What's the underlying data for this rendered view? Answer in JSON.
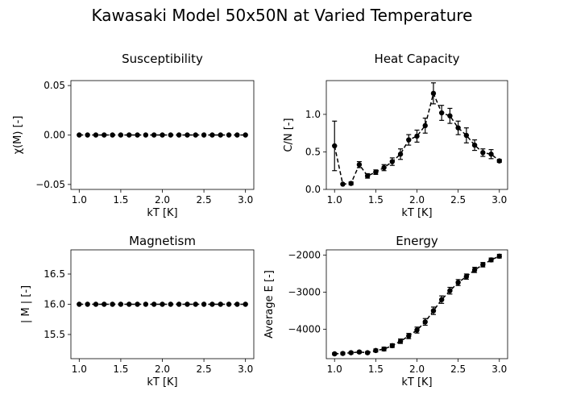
{
  "figure": {
    "title": "Kawasaki Model 50x50N at Varied Temperature"
  },
  "chart_data": [
    {
      "id": "susceptibility",
      "type": "line",
      "title": "Susceptibility",
      "xlabel": "kT [K]",
      "ylabel": "χ(M) [-]",
      "xlim": [
        0.9,
        3.1
      ],
      "ylim": [
        -0.055,
        0.055
      ],
      "xticks": [
        1.0,
        1.5,
        2.0,
        2.5,
        3.0
      ],
      "xtick_labels": [
        "1.0",
        "1.5",
        "2.0",
        "2.5",
        "3.0"
      ],
      "yticks": [
        -0.05,
        0.0,
        0.05
      ],
      "ytick_labels": [
        "−0.05",
        "0.00",
        "0.05"
      ],
      "grid": false,
      "series": [
        {
          "color": "#000000",
          "linestyle": "dashed",
          "marker": "circle",
          "x": [
            1.0,
            1.1,
            1.2,
            1.3,
            1.4,
            1.5,
            1.6,
            1.7,
            1.8,
            1.9,
            2.0,
            2.1,
            2.2,
            2.3,
            2.4,
            2.5,
            2.6,
            2.7,
            2.8,
            2.9,
            3.0
          ],
          "y": [
            0,
            0,
            0,
            0,
            0,
            0,
            0,
            0,
            0,
            0,
            0,
            0,
            0,
            0,
            0,
            0,
            0,
            0,
            0,
            0,
            0
          ],
          "yerr": [
            0,
            0,
            0,
            0,
            0,
            0,
            0,
            0,
            0,
            0,
            0,
            0,
            0,
            0,
            0,
            0,
            0,
            0,
            0,
            0,
            0
          ]
        }
      ]
    },
    {
      "id": "heat-capacity",
      "type": "line",
      "title": "Heat Capacity",
      "xlabel": "kT [K]",
      "ylabel": "C/N [-]",
      "xlim": [
        0.9,
        3.1
      ],
      "ylim": [
        0.0,
        1.45
      ],
      "xticks": [
        1.0,
        1.5,
        2.0,
        2.5,
        3.0
      ],
      "xtick_labels": [
        "1.0",
        "1.5",
        "2.0",
        "2.5",
        "3.0"
      ],
      "yticks": [
        0.0,
        0.5,
        1.0
      ],
      "ytick_labels": [
        "0.0",
        "0.5",
        "1.0"
      ],
      "grid": false,
      "series": [
        {
          "color": "#000000",
          "linestyle": "dashed",
          "marker": "circle",
          "x": [
            1.0,
            1.1,
            1.2,
            1.3,
            1.4,
            1.5,
            1.6,
            1.7,
            1.8,
            1.9,
            2.0,
            2.1,
            2.2,
            2.3,
            2.4,
            2.5,
            2.6,
            2.7,
            2.8,
            2.9,
            3.0
          ],
          "y": [
            0.58,
            0.07,
            0.08,
            0.33,
            0.18,
            0.23,
            0.29,
            0.37,
            0.47,
            0.66,
            0.71,
            0.85,
            1.28,
            1.02,
            0.98,
            0.82,
            0.72,
            0.59,
            0.49,
            0.47,
            0.38
          ],
          "yerr": [
            0.33,
            0.0,
            0.02,
            0.04,
            0.03,
            0.03,
            0.04,
            0.05,
            0.07,
            0.07,
            0.08,
            0.1,
            0.14,
            0.1,
            0.1,
            0.09,
            0.1,
            0.07,
            0.05,
            0.06,
            0.02
          ]
        }
      ]
    },
    {
      "id": "magnetism",
      "type": "line",
      "title": "Magnetism",
      "xlabel": "kT [K]",
      "ylabel": "| M |  [-]",
      "xlim": [
        0.9,
        3.1
      ],
      "ylim": [
        15.1,
        16.9
      ],
      "xticks": [
        1.0,
        1.5,
        2.0,
        2.5,
        3.0
      ],
      "xtick_labels": [
        "1.0",
        "1.5",
        "2.0",
        "2.5",
        "3.0"
      ],
      "yticks": [
        15.5,
        16.0,
        16.5
      ],
      "ytick_labels": [
        "15.5",
        "16.0",
        "16.5"
      ],
      "grid": false,
      "series": [
        {
          "color": "#000000",
          "linestyle": "dashed",
          "marker": "circle",
          "x": [
            1.0,
            1.1,
            1.2,
            1.3,
            1.4,
            1.5,
            1.6,
            1.7,
            1.8,
            1.9,
            2.0,
            2.1,
            2.2,
            2.3,
            2.4,
            2.5,
            2.6,
            2.7,
            2.8,
            2.9,
            3.0
          ],
          "y": [
            16,
            16,
            16,
            16,
            16,
            16,
            16,
            16,
            16,
            16,
            16,
            16,
            16,
            16,
            16,
            16,
            16,
            16,
            16,
            16,
            16
          ],
          "yerr": [
            0,
            0,
            0,
            0,
            0,
            0,
            0,
            0,
            0,
            0,
            0,
            0,
            0,
            0,
            0,
            0,
            0,
            0,
            0,
            0,
            0
          ]
        }
      ]
    },
    {
      "id": "energy",
      "type": "line",
      "title": "Energy",
      "xlabel": "kT [K]",
      "ylabel": "Average E [-]",
      "xlim": [
        0.9,
        3.1
      ],
      "ylim": [
        -4790,
        -1860
      ],
      "xticks": [
        1.0,
        1.5,
        2.0,
        2.5,
        3.0
      ],
      "xtick_labels": [
        "1.0",
        "1.5",
        "2.0",
        "2.5",
        "3.0"
      ],
      "yticks": [
        -4000,
        -3000,
        -2000
      ],
      "ytick_labels": [
        "−4000",
        "−3000",
        "−2000"
      ],
      "grid": false,
      "series": [
        {
          "color": "#000000",
          "linestyle": "dashed",
          "marker": "circle",
          "x": [
            1.0,
            1.1,
            1.2,
            1.3,
            1.4,
            1.5,
            1.6,
            1.7,
            1.8,
            1.9,
            2.0,
            2.1,
            2.2,
            2.3,
            2.4,
            2.5,
            2.6,
            2.7,
            2.8,
            2.9,
            3.0
          ],
          "y": [
            -4660,
            -4650,
            -4630,
            -4610,
            -4630,
            -4570,
            -4530,
            -4440,
            -4320,
            -4180,
            -4020,
            -3800,
            -3500,
            -3200,
            -2960,
            -2740,
            -2580,
            -2400,
            -2260,
            -2130,
            -2030
          ],
          "yerr": [
            30,
            30,
            30,
            30,
            30,
            40,
            50,
            50,
            60,
            70,
            80,
            90,
            100,
            100,
            90,
            80,
            70,
            70,
            60,
            50,
            50
          ]
        }
      ]
    }
  ]
}
